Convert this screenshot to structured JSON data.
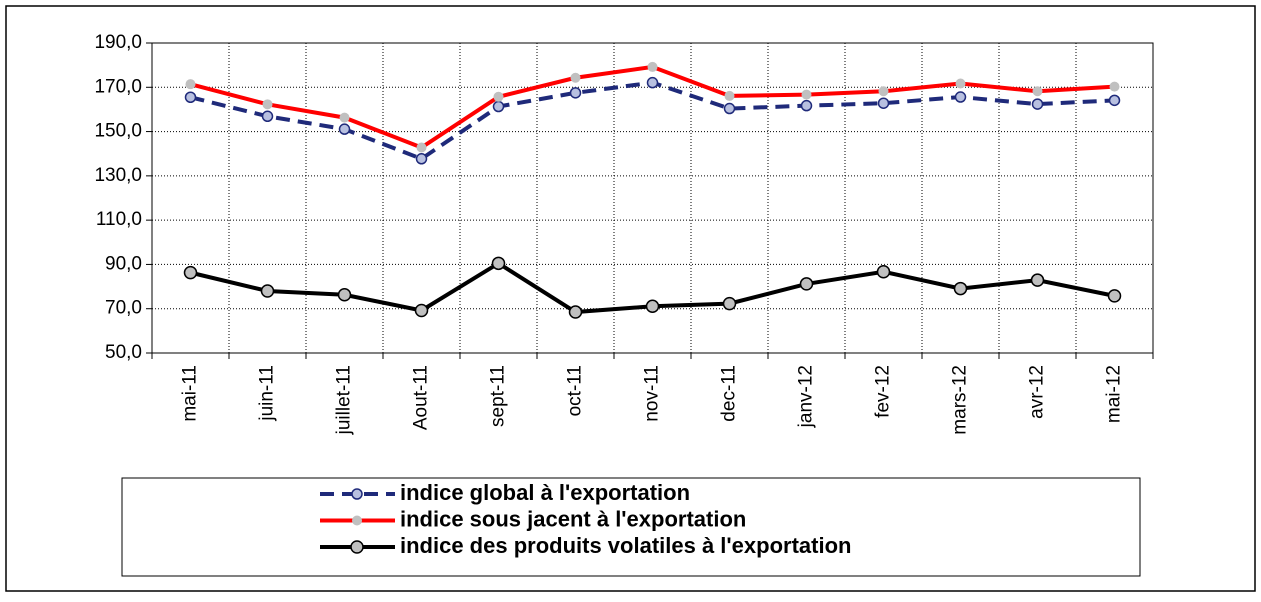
{
  "chart_data": {
    "type": "line",
    "categories": [
      "mai-11",
      "juin-11",
      "juillet-11",
      "Aout-11",
      "sept-11",
      "oct-11",
      "nov-11",
      "dec-11",
      "janv-12",
      "fev-12",
      "mars-12",
      "avr-12",
      "mai-12"
    ],
    "series": [
      {
        "name": "indice global à l'exportation",
        "color": "#1f2a7a",
        "dash": true,
        "marker": "#b8c0e0",
        "values": [
          165.5,
          156.9,
          151.1,
          137.7,
          161.3,
          167.5,
          172.1,
          160.4,
          161.7,
          162.8,
          165.6,
          162.4,
          164.1
        ]
      },
      {
        "name": "indice sous jacent à l'exportation",
        "color": "#ff0000",
        "dash": false,
        "marker": "#c0c0c0",
        "values": [
          171.4,
          162.3,
          156.3,
          142.8,
          165.7,
          174.3,
          179.2,
          166.1,
          166.7,
          168.2,
          171.7,
          168.2,
          170.3
        ]
      },
      {
        "name": "indice des produits volatiles à l'exportation",
        "color": "#000000",
        "dash": false,
        "marker": "#c0c0c0",
        "values": [
          86.3,
          78.0,
          76.3,
          69.2,
          90.5,
          68.5,
          71.1,
          72.3,
          81.2,
          86.7,
          79.1,
          82.9,
          75.8
        ]
      }
    ],
    "ylim": [
      50,
      190
    ],
    "yticks": [
      {
        "value": 50,
        "label": "50,0"
      },
      {
        "value": 70,
        "label": "70,0"
      },
      {
        "value": 90,
        "label": "90,0"
      },
      {
        "value": 110,
        "label": "110,0"
      },
      {
        "value": 130,
        "label": "130,0"
      },
      {
        "value": 150,
        "label": "150,0"
      },
      {
        "value": 170,
        "label": "170,0"
      },
      {
        "value": 190,
        "label": "190,0"
      }
    ],
    "grid": true,
    "legend": "bottom"
  }
}
